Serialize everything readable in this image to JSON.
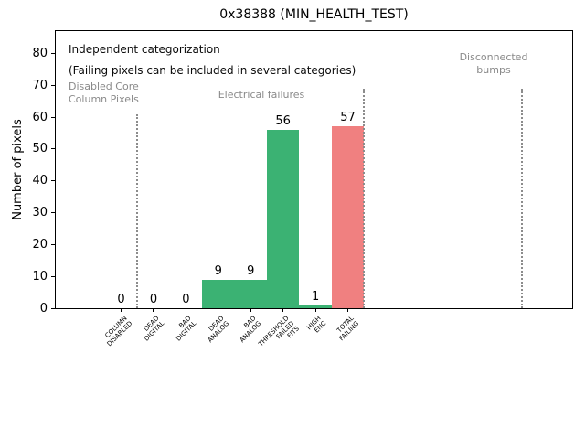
{
  "chart_data": {
    "type": "bar",
    "title": "0x38388 (MIN_HEALTH_TEST)",
    "ylabel": "Number of pixels",
    "xlabel": "",
    "categories": [
      "COLUMN\nDISABLED",
      "DEAD\nDIGITAL",
      "BAD\nDIGITAL",
      "DEAD\nANALOG",
      "BAD\nANALOG",
      "THRESHOLD\nFAILED\nFITS",
      "HIGH\nENC",
      "TOTAL\nFAILING"
    ],
    "values": [
      0,
      0,
      0,
      9,
      9,
      56,
      1,
      57
    ],
    "bar_colors": [
      "#3bb273",
      "#3bb273",
      "#3bb273",
      "#3bb273",
      "#3bb273",
      "#3bb273",
      "#3bb273",
      "#f08080"
    ],
    "value_labels": [
      "0",
      "0",
      "0",
      "9",
      "9",
      "56",
      "1",
      "57"
    ],
    "ylim": [
      0,
      87
    ],
    "xlim": [
      -2.02,
      13.93
    ],
    "yticks": [
      0,
      10,
      20,
      30,
      40,
      50,
      60,
      70,
      80
    ],
    "grid": false,
    "legend": null,
    "annotations": {
      "independent": "Independent categorization",
      "failing_note": "(Failing pixels can be included in several categories)",
      "regions": [
        {
          "label": "Disabled Core\nColumn Pixels"
        },
        {
          "label": "Electrical failures"
        },
        {
          "label": "Disconnected\nbumps"
        }
      ]
    },
    "separator_lines": [
      {
        "x": 0.5,
        "y_top": 61
      },
      {
        "x": 7.5,
        "y_top": 69
      },
      {
        "x": 12.39,
        "y_top": 69
      }
    ],
    "colors": {
      "pass_green": "#3bb273",
      "fail_red": "#f08080",
      "annotation_gray": "#8a8a8a",
      "axis_black": "#000000"
    }
  }
}
